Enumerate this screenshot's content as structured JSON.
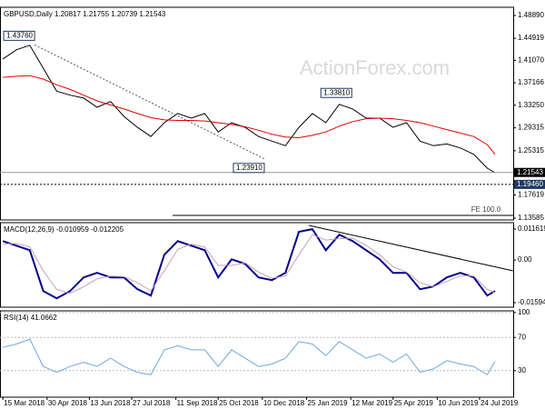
{
  "chart_data": {
    "type": "financial",
    "watermark": "ActionForex.com",
    "x": [
      "2018-03-15",
      "2018-03-29",
      "2018-04-12",
      "2018-04-26",
      "2018-05-10",
      "2018-05-24",
      "2018-06-07",
      "2018-06-21",
      "2018-07-05",
      "2018-07-19",
      "2018-08-02",
      "2018-08-16",
      "2018-08-30",
      "2018-09-13",
      "2018-09-27",
      "2018-10-11",
      "2018-10-25",
      "2018-11-08",
      "2018-11-22",
      "2018-12-06",
      "2018-12-20",
      "2019-01-03",
      "2019-01-17",
      "2019-01-31",
      "2019-02-14",
      "2019-02-28",
      "2019-03-14",
      "2019-03-28",
      "2019-04-11",
      "2019-04-25",
      "2019-05-09",
      "2019-05-23",
      "2019-06-06",
      "2019-06-20",
      "2019-07-04",
      "2019-07-18",
      "2019-08-01",
      "2019-08-09"
    ],
    "xlim": [
      "2018-03-12",
      "2019-08-28"
    ],
    "xticks": [
      {
        "value": "2018-03-15",
        "label": "15 Mar 2018"
      },
      {
        "value": "2018-04-30",
        "label": "30 Apr 2018"
      },
      {
        "value": "2018-06-13",
        "label": "13 Jun 2018"
      },
      {
        "value": "2018-07-27",
        "label": "27 Jul 2018"
      },
      {
        "value": "2018-09-11",
        "label": "11 Sep 2018"
      },
      {
        "value": "2018-10-25",
        "label": "25 Oct 2018"
      },
      {
        "value": "2018-12-10",
        "label": "10 Dec 2018"
      },
      {
        "value": "2019-01-25",
        "label": "25 Jan 2019"
      },
      {
        "value": "2019-03-12",
        "label": "12 Mar 2019"
      },
      {
        "value": "2019-04-25",
        "label": "25 Apr 2019"
      },
      {
        "value": "2019-06-10",
        "label": "10 Jun 2019"
      },
      {
        "value": "2019-07-24",
        "label": "24 Jul 2019"
      }
    ],
    "panels": [
      {
        "type": "line",
        "title": "GBPUSD,Daily  1.20817 1.21755 1.20739 1.21543",
        "ylim": [
          1.1327,
          1.5031
        ],
        "yticks": [
          {
            "value": 1.4889,
            "label": "1.48890"
          },
          1.44919,
          {
            "value": 1.4107,
            "label": "1.41070"
          },
          1.37166,
          {
            "value": 1.3325,
            "label": "1.33250"
          },
          1.29315,
          1.25315,
          1.17619,
          1.13585
        ],
        "series": [
          {
            "color": "#000000",
            "values": [
              1.413,
              1.429,
              1.437,
              1.397,
              1.357,
              1.35,
              1.345,
              1.329,
              1.339,
              1.313,
              1.294,
              1.278,
              1.302,
              1.318,
              1.31,
              1.318,
              1.286,
              1.302,
              1.294,
              1.278,
              1.27,
              1.262,
              1.294,
              1.318,
              1.302,
              1.334,
              1.326,
              1.31,
              1.31,
              1.294,
              1.302,
              1.27,
              1.262,
              1.265,
              1.258,
              1.247,
              1.223,
              1.215
            ]
          },
          {
            "color": "#e00000",
            "values": [
              1.381,
              1.383,
              1.384,
              1.378,
              1.368,
              1.36,
              1.35,
              1.34,
              1.333,
              1.326,
              1.318,
              1.311,
              1.307,
              1.306,
              1.306,
              1.305,
              1.302,
              1.299,
              1.295,
              1.289,
              1.282,
              1.277,
              1.276,
              1.28,
              1.286,
              1.296,
              1.304,
              1.309,
              1.31,
              1.309,
              1.306,
              1.302,
              1.296,
              1.29,
              1.284,
              1.278,
              1.264,
              1.247
            ]
          }
        ],
        "annotations": [
          {
            "x": "2018-04-17",
            "value": 1.4376,
            "label": "1.43760"
          },
          {
            "x": "2018-12-12",
            "value": 1.2391,
            "label": "1.23910"
          },
          {
            "x": "2019-03-13",
            "value": 1.3381,
            "label": "1.33810"
          }
        ],
        "price_tags": [
          {
            "value": 1.21543,
            "color": "#000000"
          },
          {
            "value": 1.1946,
            "label": "1.19460",
            "color": "#1f3a60"
          }
        ],
        "fe_label": "FE 100.0"
      },
      {
        "type": "line",
        "title": "MACD(12,26,9) -0.010959 -0.012205",
        "ylim": [
          -0.01765,
          0.014
        ],
        "yticks": [
          0.011619,
          {
            "value": 0,
            "label": "0.00"
          },
          -0.015949
        ],
        "series": [
          {
            "color": "#00008b",
            "width": 2,
            "values": [
              0.0071,
              0.0054,
              0.0037,
              -0.0116,
              -0.0143,
              -0.0116,
              -0.0065,
              -0.0048,
              -0.0065,
              -0.0065,
              -0.0109,
              -0.0133,
              0.002,
              0.0071,
              0.0054,
              0.0037,
              -0.0065,
              0.0003,
              -0.0014,
              -0.0065,
              -0.0075,
              -0.0048,
              0.0106,
              0.0116,
              0.0037,
              0.0095,
              0.0071,
              0.0037,
              0.0003,
              -0.0048,
              -0.0048,
              -0.0109,
              -0.0099,
              -0.0065,
              -0.0048,
              -0.0065,
              -0.0133,
              -0.0116
            ]
          },
          {
            "color": "#c8a0b4",
            "width": 1,
            "values": [
              0.006,
              0.0062,
              0.005,
              -0.004,
              -0.011,
              -0.0125,
              -0.01,
              -0.007,
              -0.006,
              -0.0062,
              -0.0085,
              -0.0115,
              -0.004,
              0.004,
              0.006,
              0.0048,
              -0.002,
              -0.002,
              -0.001,
              -0.0045,
              -0.0068,
              -0.006,
              0.002,
              0.0095,
              0.0075,
              0.008,
              0.0082,
              0.0055,
              0.002,
              -0.0025,
              -0.0045,
              -0.0085,
              -0.01,
              -0.008,
              -0.0058,
              -0.006,
              -0.011,
              -0.0122
            ]
          }
        ]
      },
      {
        "type": "line",
        "title": "RSI(14) 41.0662",
        "ylim": [
          -2,
          102
        ],
        "yticks": [
          100,
          70,
          30
        ],
        "series": [
          {
            "color": "#6fa8dc",
            "width": 1,
            "values": [
              58,
              62,
              68,
              35,
              28,
              35,
              40,
              35,
              45,
              35,
              28,
              25,
              55,
              60,
              55,
              55,
              35,
              55,
              45,
              35,
              38,
              45,
              65,
              62,
              48,
              65,
              55,
              45,
              50,
              40,
              50,
              28,
              32,
              42,
              38,
              35,
              25,
              41
            ]
          }
        ]
      }
    ]
  }
}
